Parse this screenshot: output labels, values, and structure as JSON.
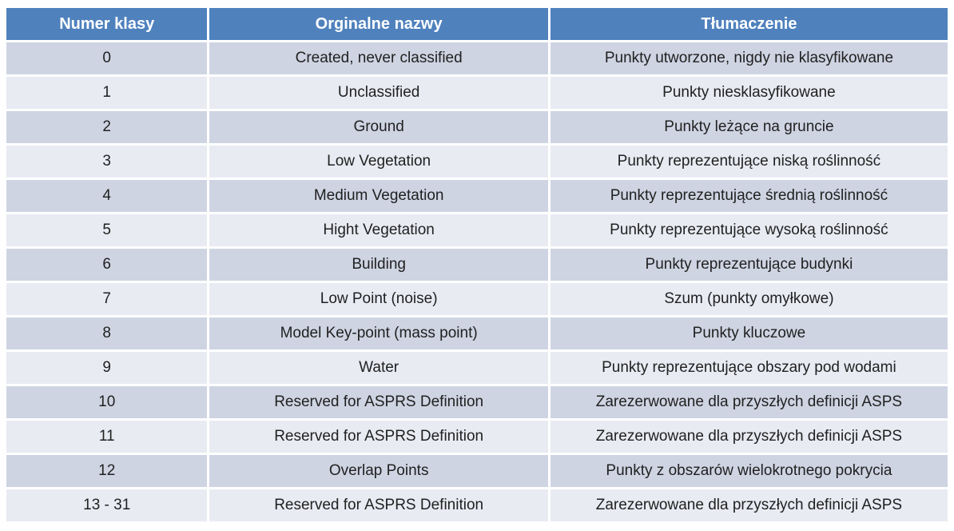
{
  "table": {
    "headers": [
      "Numer klasy",
      "Orginalne nazwy",
      "Tłumaczenie"
    ],
    "rows": [
      [
        "0",
        "Created, never classified",
        "Punkty utworzone, nigdy nie klasyfikowane"
      ],
      [
        "1",
        "Unclassified",
        "Punkty niesklasyfikowane"
      ],
      [
        "2",
        "Ground",
        "Punkty leżące na gruncie"
      ],
      [
        "3",
        "Low Vegetation",
        "Punkty reprezentujące niską roślinność"
      ],
      [
        "4",
        "Medium Vegetation",
        "Punkty reprezentujące średnią roślinność"
      ],
      [
        "5",
        "Hight Vegetation",
        "Punkty reprezentujące wysoką roślinność"
      ],
      [
        "6",
        "Building",
        "Punkty reprezentujące budynki"
      ],
      [
        "7",
        "Low Point (noise)",
        "Szum (punkty omyłkowe)"
      ],
      [
        "8",
        "Model Key-point (mass point)",
        "Punkty kluczowe"
      ],
      [
        "9",
        "Water",
        "Punkty reprezentujące obszary pod wodami"
      ],
      [
        "10",
        "Reserved for ASPRS Definition",
        "Zarezerwowane dla przyszłych definicji ASPS"
      ],
      [
        "11",
        "Reserved for ASPRS Definition",
        "Zarezerwowane dla przyszłych definicji ASPS"
      ],
      [
        "12",
        "Overlap Points",
        "Punkty z obszarów wielokrotnego pokrycia"
      ],
      [
        "13 - 31",
        "Reserved for ASPRS Definition",
        "Zarezerwowane dla przyszłych definicji ASPS"
      ]
    ]
  },
  "colors": {
    "header_bg": "#4F81BD",
    "header_text": "#FFFFFF",
    "row_dark": "#CED4E2",
    "row_light": "#E9EBF3",
    "body_text": "#212121",
    "separator": "#FFFFFF"
  }
}
